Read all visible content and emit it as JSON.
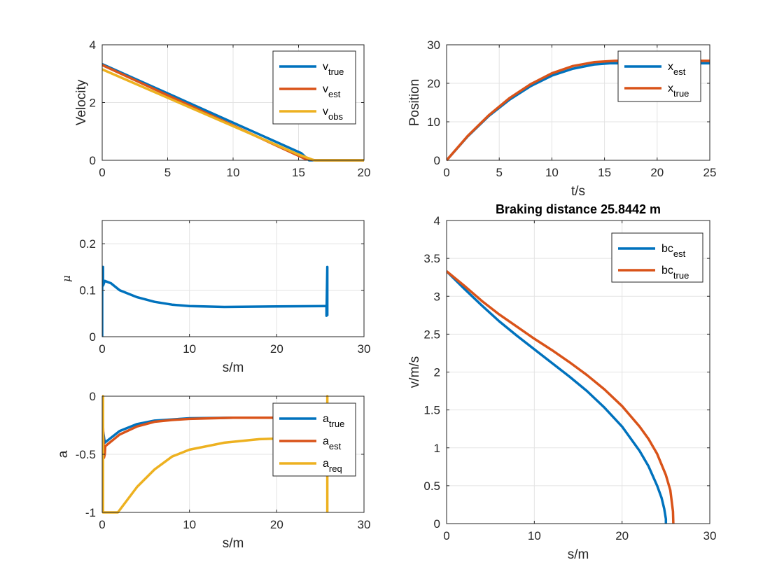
{
  "colors": {
    "blue": "#0072BD",
    "orange": "#D95319",
    "yellow": "#EDB120"
  },
  "chart_data": [
    {
      "id": "vel",
      "type": "line",
      "xlim": [
        0,
        20
      ],
      "ylim": [
        0,
        4
      ],
      "xticks": [
        0,
        5,
        10,
        15,
        20
      ],
      "yticks": [
        0,
        2,
        4
      ],
      "xlabel": "",
      "ylabel": "Velocity",
      "title": "",
      "grid": true,
      "legend": "top-right",
      "series": [
        {
          "name": "v",
          "sub": "true",
          "color": "blue",
          "x": [
            0,
            15.2,
            15.8,
            20
          ],
          "y": [
            3.33,
            0.25,
            0,
            0
          ]
        },
        {
          "name": "v",
          "sub": "est",
          "color": "orange",
          "x": [
            0,
            15.5,
            16.3,
            20
          ],
          "y": [
            3.3,
            0.05,
            0,
            0
          ]
        },
        {
          "name": "v",
          "sub": "obs",
          "color": "yellow",
          "x": [
            0,
            15,
            16.2,
            20
          ],
          "y": [
            3.15,
            0.2,
            0,
            0
          ]
        }
      ]
    },
    {
      "id": "pos",
      "type": "line",
      "xlim": [
        0,
        25
      ],
      "ylim": [
        0,
        30
      ],
      "xticks": [
        0,
        5,
        10,
        15,
        20,
        25
      ],
      "yticks": [
        0,
        10,
        20,
        30
      ],
      "xlabel": "t/s",
      "ylabel": "Position",
      "title": "",
      "grid": true,
      "legend": "top-right",
      "series": [
        {
          "name": "x",
          "sub": "est",
          "color": "blue",
          "x": [
            0,
            2,
            4,
            6,
            8,
            10,
            12,
            14,
            15.5,
            25
          ],
          "y": [
            0,
            6.2,
            11.5,
            15.8,
            19.3,
            22.0,
            23.8,
            24.9,
            25.2,
            25.2
          ]
        },
        {
          "name": "x",
          "sub": "true",
          "color": "orange",
          "x": [
            0,
            2,
            4,
            6,
            8,
            10,
            12,
            14,
            16,
            25
          ],
          "y": [
            0,
            6.3,
            11.7,
            16.2,
            19.8,
            22.6,
            24.5,
            25.5,
            25.84,
            25.84
          ]
        }
      ]
    },
    {
      "id": "mu",
      "type": "line",
      "xlim": [
        0,
        30
      ],
      "ylim": [
        0,
        0.25
      ],
      "xticks": [
        0,
        10,
        20,
        30
      ],
      "yticks": [
        0,
        0.1,
        0.2
      ],
      "xlabel": "s/m",
      "ylabel": "μ",
      "title": "",
      "grid": true,
      "legend": "none",
      "series": [
        {
          "name": "",
          "color": "blue",
          "x": [
            0,
            0,
            0.1,
            0.1,
            0.3,
            0.3,
            1,
            2,
            4,
            6,
            8,
            10,
            14,
            20,
            25.5,
            25.7,
            25.7,
            25.8,
            25.8
          ],
          "y": [
            0,
            0.15,
            0.15,
            0.11,
            0.12,
            0.12,
            0.115,
            0.1,
            0.085,
            0.075,
            0.069,
            0.066,
            0.064,
            0.065,
            0.066,
            0.066,
            0.045,
            0.15,
            0.045
          ]
        }
      ]
    },
    {
      "id": "acc",
      "type": "line",
      "xlim": [
        0,
        30
      ],
      "ylim": [
        -1,
        0
      ],
      "xticks": [
        0,
        10,
        20,
        30
      ],
      "yticks": [
        -1,
        -0.5,
        0
      ],
      "xlabel": "s/m",
      "ylabel": "a",
      "title": "",
      "grid": true,
      "legend": "top-right",
      "series": [
        {
          "name": "a",
          "sub": "true",
          "color": "blue",
          "x": [
            0,
            0.1,
            0.3,
            2,
            4,
            6,
            8,
            10,
            15,
            20,
            26
          ],
          "y": [
            0,
            -0.3,
            -0.4,
            -0.3,
            -0.24,
            -0.21,
            -0.2,
            -0.19,
            -0.185,
            -0.185,
            -0.19
          ]
        },
        {
          "name": "a",
          "sub": "est",
          "color": "orange",
          "x": [
            0,
            0.2,
            0.3,
            0.35,
            2,
            4,
            6,
            8,
            10,
            15,
            20,
            26
          ],
          "y": [
            0,
            -0.53,
            -0.5,
            -0.43,
            -0.33,
            -0.26,
            -0.22,
            -0.205,
            -0.195,
            -0.185,
            -0.185,
            -0.19
          ]
        },
        {
          "name": "a",
          "sub": "req",
          "color": "yellow",
          "x": [
            0,
            0,
            0.1,
            0.1,
            0.2,
            1.8,
            4,
            6,
            8,
            10,
            14,
            18,
            22,
            25.8,
            25.8,
            25.8
          ],
          "y": [
            -1,
            0,
            0,
            -1,
            -1,
            -1,
            -0.78,
            -0.63,
            -0.52,
            -0.46,
            -0.4,
            -0.37,
            -0.36,
            -0.355,
            0,
            -1
          ]
        }
      ]
    },
    {
      "id": "brake",
      "type": "line",
      "xlim": [
        0,
        30
      ],
      "ylim": [
        0,
        4
      ],
      "xticks": [
        0,
        10,
        20,
        30
      ],
      "yticks": [
        0,
        0.5,
        1,
        1.5,
        2,
        2.5,
        3,
        3.5,
        4
      ],
      "xlabel": "s/m",
      "ylabel": "v/m/s",
      "title": "Braking distance 25.8442 m",
      "grid": true,
      "legend": "top-right",
      "series": [
        {
          "name": "bc",
          "sub": "est",
          "color": "blue",
          "x": [
            0,
            2,
            4,
            6,
            8,
            10,
            12,
            14,
            16,
            18,
            20,
            22,
            23,
            24,
            24.5,
            24.8,
            25,
            25
          ],
          "y": [
            3.33,
            3.1,
            2.88,
            2.67,
            2.48,
            2.3,
            2.12,
            1.94,
            1.75,
            1.53,
            1.28,
            0.96,
            0.76,
            0.5,
            0.34,
            0.2,
            0.06,
            0
          ]
        },
        {
          "name": "bc",
          "sub": "true",
          "color": "orange",
          "x": [
            0,
            2,
            4,
            6,
            8,
            10,
            12,
            14,
            16,
            18,
            20,
            22,
            23,
            24,
            25,
            25.5,
            25.8,
            25.84
          ],
          "y": [
            3.33,
            3.14,
            2.94,
            2.76,
            2.6,
            2.44,
            2.29,
            2.13,
            1.96,
            1.77,
            1.55,
            1.28,
            1.12,
            0.92,
            0.64,
            0.44,
            0.16,
            0
          ]
        }
      ]
    }
  ]
}
